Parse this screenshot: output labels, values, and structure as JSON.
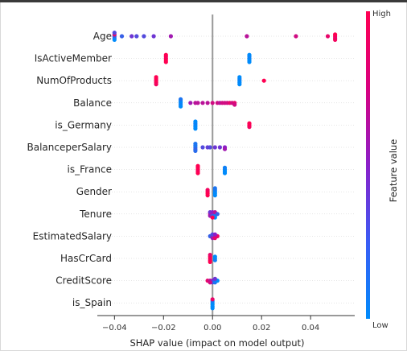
{
  "chart_data": {
    "type": "scatter",
    "subtype": "shap-beeswarm",
    "xlabel": "SHAP value (impact on model output)",
    "xlim": [
      -0.047,
      0.058
    ],
    "xticks": [
      -0.04,
      -0.02,
      0.0,
      0.02,
      0.04
    ],
    "xtick_labels": [
      "−0.04",
      "−0.02",
      "0.00",
      "0.02",
      "0.04"
    ],
    "colorbar": {
      "label": "Feature value",
      "high": "High",
      "low": "Low"
    },
    "colors": {
      "high": "#ff0052",
      "low": "#008bfb",
      "zero_line": "#999999"
    },
    "features": [
      {
        "name": "Age",
        "points": [
          [
            -0.04,
            0.1
          ],
          [
            -0.04,
            0.2
          ],
          [
            -0.04,
            0.9
          ],
          [
            -0.04,
            0.0
          ],
          [
            -0.04,
            0.3
          ],
          [
            -0.037,
            0.2
          ],
          [
            -0.033,
            0.4
          ],
          [
            -0.031,
            0.3
          ],
          [
            -0.028,
            0.3
          ],
          [
            -0.024,
            0.4
          ],
          [
            -0.017,
            0.6
          ],
          [
            0.014,
            0.7
          ],
          [
            0.034,
            0.8
          ],
          [
            0.047,
            0.9
          ],
          [
            0.05,
            1.0
          ],
          [
            0.05,
            0.9
          ],
          [
            0.05,
            1.0
          ],
          [
            0.05,
            0.95
          ]
        ]
      },
      {
        "name": "IsActiveMember",
        "points": [
          [
            -0.019,
            1.0
          ],
          [
            -0.019,
            1.0
          ],
          [
            -0.019,
            0.95
          ],
          [
            -0.019,
            1.0
          ],
          [
            -0.019,
            1.0
          ],
          [
            0.015,
            0.0
          ],
          [
            0.015,
            0.0
          ],
          [
            0.015,
            0.05
          ],
          [
            0.015,
            0.0
          ],
          [
            0.015,
            0.0
          ]
        ]
      },
      {
        "name": "NumOfProducts",
        "points": [
          [
            -0.023,
            0.9
          ],
          [
            -0.023,
            1.0
          ],
          [
            -0.023,
            1.0
          ],
          [
            -0.023,
            0.95
          ],
          [
            -0.023,
            1.0
          ],
          [
            0.011,
            0.0
          ],
          [
            0.011,
            0.0
          ],
          [
            0.011,
            0.05
          ],
          [
            0.011,
            0.0
          ],
          [
            0.011,
            0.0
          ],
          [
            0.021,
            1.0
          ]
        ]
      },
      {
        "name": "Balance",
        "points": [
          [
            -0.013,
            0.0
          ],
          [
            -0.013,
            0.05
          ],
          [
            -0.013,
            0.0
          ],
          [
            -0.013,
            0.0
          ],
          [
            -0.013,
            0.1
          ],
          [
            -0.009,
            0.6
          ],
          [
            -0.007,
            0.7
          ],
          [
            -0.006,
            0.7
          ],
          [
            -0.004,
            0.7
          ],
          [
            -0.002,
            0.7
          ],
          [
            0.0,
            0.8
          ],
          [
            0.002,
            0.8
          ],
          [
            0.003,
            0.7
          ],
          [
            0.004,
            0.8
          ],
          [
            0.005,
            0.8
          ],
          [
            0.006,
            0.8
          ],
          [
            0.007,
            0.9
          ],
          [
            0.008,
            0.8
          ],
          [
            0.009,
            0.9
          ],
          [
            0.009,
            0.8
          ]
        ]
      },
      {
        "name": "is_Germany",
        "points": [
          [
            -0.007,
            0.0
          ],
          [
            -0.007,
            0.0
          ],
          [
            -0.007,
            0.05
          ],
          [
            -0.007,
            0.0
          ],
          [
            -0.007,
            0.0
          ],
          [
            0.015,
            1.0
          ],
          [
            0.015,
            0.95
          ],
          [
            0.015,
            1.0
          ]
        ]
      },
      {
        "name": "BalanceperSalary",
        "points": [
          [
            -0.007,
            0.1
          ],
          [
            -0.007,
            0.2
          ],
          [
            -0.007,
            0.1
          ],
          [
            -0.007,
            0.15
          ],
          [
            -0.007,
            0.1
          ],
          [
            -0.004,
            0.3
          ],
          [
            -0.002,
            0.35
          ],
          [
            -0.001,
            0.3
          ],
          [
            0.001,
            0.4
          ],
          [
            0.003,
            0.4
          ],
          [
            0.005,
            0.5
          ],
          [
            0.005,
            0.6
          ]
        ]
      },
      {
        "name": "is_France",
        "points": [
          [
            -0.006,
            1.0
          ],
          [
            -0.006,
            0.95
          ],
          [
            -0.006,
            1.0
          ],
          [
            -0.006,
            1.0
          ],
          [
            -0.006,
            1.0
          ],
          [
            0.005,
            0.0
          ],
          [
            0.005,
            0.0
          ],
          [
            0.005,
            0.05
          ],
          [
            0.005,
            0.0
          ]
        ]
      },
      {
        "name": "Gender",
        "points": [
          [
            -0.002,
            1.0
          ],
          [
            -0.002,
            1.0
          ],
          [
            -0.002,
            0.95
          ],
          [
            -0.002,
            1.0
          ],
          [
            0.001,
            0.0
          ],
          [
            0.001,
            0.0
          ],
          [
            0.001,
            0.05
          ],
          [
            0.001,
            0.0
          ],
          [
            0.001,
            0.1
          ]
        ]
      },
      {
        "name": "Tenure",
        "points": [
          [
            -0.001,
            0.9
          ],
          [
            -0.001,
            0.6
          ],
          [
            -0.001,
            0.4
          ],
          [
            0.0,
            0.8
          ],
          [
            0.0,
            0.2
          ],
          [
            0.0,
            0.5
          ],
          [
            0.001,
            0.3
          ],
          [
            0.001,
            0.1
          ],
          [
            0.001,
            0.7
          ],
          [
            0.001,
            0.0
          ],
          [
            0.002,
            0.2
          ],
          [
            0.0,
            1.0
          ]
        ]
      },
      {
        "name": "EstimatedSalary",
        "points": [
          [
            -0.001,
            0.2
          ],
          [
            0.0,
            0.4
          ],
          [
            0.0,
            0.6
          ],
          [
            0.001,
            0.8
          ],
          [
            0.001,
            0.9
          ],
          [
            0.002,
            0.9
          ],
          [
            0.0,
            0.3
          ],
          [
            0.001,
            0.5
          ]
        ]
      },
      {
        "name": "HasCrCard",
        "points": [
          [
            -0.001,
            1.0
          ],
          [
            -0.001,
            0.95
          ],
          [
            -0.001,
            1.0
          ],
          [
            -0.001,
            1.0
          ],
          [
            -0.001,
            0.9
          ],
          [
            0.001,
            0.0
          ],
          [
            0.001,
            0.05
          ],
          [
            0.001,
            0.0
          ]
        ]
      },
      {
        "name": "CreditScore",
        "points": [
          [
            -0.002,
            0.9
          ],
          [
            -0.001,
            0.7
          ],
          [
            0.0,
            0.5
          ],
          [
            0.0,
            0.3
          ],
          [
            0.001,
            0.2
          ],
          [
            0.001,
            0.1
          ],
          [
            0.002,
            0.0
          ],
          [
            -0.001,
            0.8
          ],
          [
            0.001,
            0.4
          ]
        ]
      },
      {
        "name": "is_Spain",
        "points": [
          [
            0.0,
            0.0
          ],
          [
            0.0,
            0.0
          ],
          [
            0.0,
            0.05
          ],
          [
            0.0,
            0.0
          ],
          [
            0.0,
            0.9
          ],
          [
            0.0,
            0.0
          ]
        ]
      }
    ]
  }
}
